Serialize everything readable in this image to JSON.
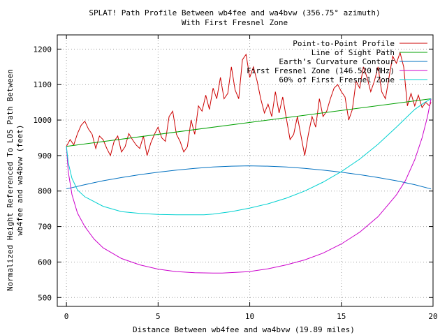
{
  "chart_data": {
    "type": "line",
    "title": "SPLAT! Path Profile Between wb4fee and wa4bvw (356.75° azimuth)",
    "subtitle": "With First Fresnel Zone",
    "xlabel": "Distance Between wb4fee and wa4bvw (19.89 miles)",
    "ylabel_lines": [
      "Normalized Height Referenced To LOS Path Between",
      "wb4fee and wa4bvw (feet)"
    ],
    "xlim": [
      -0.5,
      20
    ],
    "ylim": [
      475,
      1240
    ],
    "xticks": [
      0,
      5,
      10,
      15,
      20
    ],
    "yticks": [
      500,
      600,
      700,
      800,
      900,
      1000,
      1100,
      1200
    ],
    "grid": true,
    "legend_position": "top-right",
    "series": [
      {
        "name": "Point-to-Point Profile",
        "color": "#cc0000",
        "x": [
          0,
          0.2,
          0.4,
          0.6,
          0.8,
          1.0,
          1.2,
          1.4,
          1.6,
          1.8,
          2.0,
          2.2,
          2.4,
          2.6,
          2.8,
          3.0,
          3.2,
          3.4,
          3.6,
          3.8,
          4.0,
          4.2,
          4.4,
          4.6,
          4.8,
          5.0,
          5.2,
          5.4,
          5.6,
          5.8,
          6.0,
          6.2,
          6.4,
          6.6,
          6.8,
          7.0,
          7.2,
          7.4,
          7.6,
          7.8,
          8.0,
          8.2,
          8.4,
          8.6,
          8.8,
          9.0,
          9.2,
          9.4,
          9.6,
          9.8,
          10.0,
          10.2,
          10.4,
          10.6,
          10.8,
          11.0,
          11.2,
          11.4,
          11.6,
          11.8,
          12.0,
          12.2,
          12.4,
          12.6,
          12.8,
          13.0,
          13.2,
          13.4,
          13.6,
          13.8,
          14.0,
          14.2,
          14.4,
          14.6,
          14.8,
          15.0,
          15.2,
          15.4,
          15.6,
          15.8,
          16.0,
          16.2,
          16.4,
          16.6,
          16.8,
          17.0,
          17.2,
          17.4,
          17.6,
          17.8,
          18.0,
          18.2,
          18.4,
          18.6,
          18.8,
          19.0,
          19.2,
          19.4,
          19.6,
          19.8,
          19.89
        ],
        "y": [
          926,
          945,
          930,
          962,
          985,
          997,
          975,
          960,
          920,
          955,
          945,
          920,
          900,
          940,
          955,
          910,
          925,
          962,
          945,
          930,
          920,
          955,
          900,
          935,
          960,
          980,
          950,
          940,
          1010,
          1025,
          960,
          940,
          910,
          925,
          1000,
          960,
          1040,
          1025,
          1070,
          1030,
          1090,
          1060,
          1120,
          1060,
          1075,
          1150,
          1085,
          1060,
          1170,
          1185,
          1120,
          1150,
          1110,
          1060,
          1020,
          1045,
          1010,
          1080,
          1020,
          1065,
          1005,
          945,
          960,
          1010,
          955,
          900,
          960,
          1010,
          980,
          1060,
          1010,
          1025,
          1060,
          1090,
          1100,
          1080,
          1065,
          1000,
          1030,
          1110,
          1090,
          1150,
          1120,
          1080,
          1110,
          1150,
          1080,
          1060,
          1120,
          1180,
          1160,
          1190,
          1150,
          1040,
          1075,
          1040,
          1070,
          1035,
          1050,
          1040,
          1050
        ]
      },
      {
        "name": "Line of Sight Path",
        "color": "#00a000",
        "x": [
          0,
          19.89
        ],
        "y": [
          926,
          1060
        ]
      },
      {
        "name": "Earth’s Curvature Contour",
        "color": "#0070c0",
        "x": [
          0,
          1,
          2,
          3,
          4,
          5,
          6,
          7,
          8,
          9,
          9.94,
          11,
          12,
          13,
          14,
          15,
          16,
          17,
          18,
          19,
          19.89
        ],
        "y": [
          806,
          818,
          829,
          838,
          846,
          853,
          859,
          864,
          868,
          870,
          871,
          870,
          868,
          864,
          859,
          853,
          846,
          838,
          829,
          818,
          806
        ]
      },
      {
        "name": "First Fresnel Zone (146.520 MHz)",
        "color": "#cc00cc",
        "x": [
          0,
          0.1,
          0.3,
          0.6,
          1,
          1.5,
          2,
          3,
          4,
          5,
          6,
          7,
          8,
          8.5,
          9.94,
          11,
          12,
          13,
          14,
          15,
          16,
          17,
          18,
          18.5,
          19,
          19.4,
          19.7,
          19.89
        ],
        "y": [
          926,
          855,
          790,
          738,
          700,
          665,
          640,
          610,
          592,
          580,
          573,
          570,
          569,
          569,
          573,
          581,
          592,
          606,
          625,
          651,
          684,
          728,
          789,
          830,
          888,
          950,
          1010,
          1060
        ]
      },
      {
        "name": "60% of First Fresnel Zone",
        "color": "#00d0d0",
        "x": [
          0,
          0.1,
          0.3,
          0.6,
          1,
          2,
          3,
          4,
          5,
          6,
          7,
          7.5,
          8,
          9,
          10,
          11,
          12,
          13,
          14,
          15,
          16,
          17,
          18,
          18.5,
          19,
          19.5,
          19.89
        ],
        "y": [
          926,
          880,
          836,
          803,
          784,
          757,
          742,
          737,
          734,
          733,
          733,
          733,
          735,
          742,
          752,
          764,
          780,
          800,
          825,
          855,
          890,
          932,
          980,
          1005,
          1030,
          1048,
          1060
        ]
      }
    ]
  }
}
